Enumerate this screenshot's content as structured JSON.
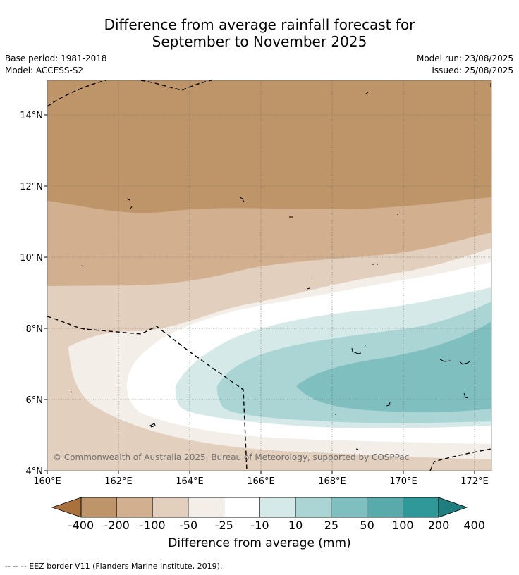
{
  "title_line1": "Difference from average rainfall forecast for",
  "title_line2": "September to November 2025",
  "base_period": "Base period: 1981-2018",
  "model": "Model: ACCESS-S2",
  "model_run": "Model run: 23/08/2025",
  "issued": "Issued: 25/08/2025",
  "copyright": "© Commonwealth of Australia 2025, Bureau of Meteorology, supported by COSPPac",
  "map": {
    "x_ticks": [
      "160°E",
      "162°E",
      "164°E",
      "166°E",
      "168°E",
      "170°E",
      "172°E"
    ],
    "y_ticks": [
      "14°N",
      "12°N",
      "10°N",
      "8°N",
      "6°N",
      "4°N"
    ]
  },
  "colorbar": {
    "labels": [
      "-400",
      "-200",
      "-100",
      "-50",
      "-25",
      "-10",
      "10",
      "25",
      "50",
      "100",
      "200",
      "400"
    ],
    "colors": [
      "#a9713d",
      "#be9469",
      "#d2b08f",
      "#e2cfbd",
      "#f4eee9",
      "#ffffff",
      "#d5e9e8",
      "#abd5d5",
      "#80bfc0",
      "#58aaab",
      "#2f9898",
      "#1f7f80"
    ],
    "title": "Difference from average (mm)"
  },
  "footnote": "--  --  -- EEZ border V11 (Flanders Marine Institute, 2019)."
}
